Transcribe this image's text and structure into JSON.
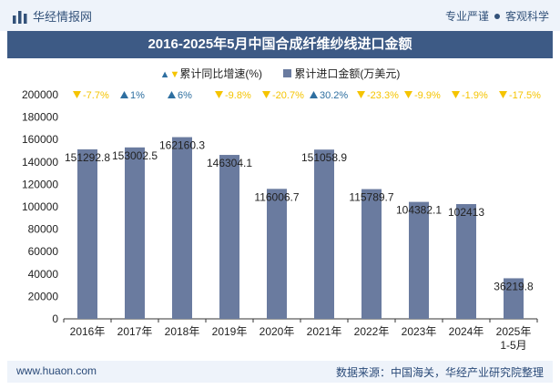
{
  "header": {
    "brand": "华经情报网",
    "slogan_left": "专业严谨",
    "slogan_right": "客观科学"
  },
  "title": "2016-2025年5月中国合成纤维纱线进口金额",
  "legend": {
    "growth_label": "累计同比增速(%)",
    "amount_label": "累计进口金额(万美元)"
  },
  "footer": {
    "website": "www.huaon.com",
    "source": "数据来源：中国海关，华经产业研究院整理"
  },
  "colors": {
    "bar": "#6a7b9f",
    "up": "#2e6fa0",
    "down": "#f5c400",
    "header_bg": "#3d5a85"
  },
  "chart_data": {
    "type": "bar",
    "categories": [
      "2016年",
      "2017年",
      "2018年",
      "2019年",
      "2020年",
      "2021年",
      "2022年",
      "2023年",
      "2024年",
      "2025年\n1-5月"
    ],
    "series": [
      {
        "name": "累计进口金额(万美元)",
        "values": [
          151292.8,
          153002.5,
          162160.3,
          146304.1,
          116006.7,
          151058.9,
          115789.7,
          104382.1,
          102413,
          36219.8
        ]
      },
      {
        "name": "累计同比增速(%)",
        "values": [
          -7.7,
          1,
          6,
          -9.8,
          -20.7,
          30.2,
          -23.3,
          -9.9,
          -1.9,
          -17.5
        ]
      }
    ],
    "value_labels": [
      "151292.8",
      "153002.5",
      "162160.3",
      "146304.1",
      "116006.7",
      "151058.9",
      "115789.7",
      "104382.1",
      "102413",
      "36219.8"
    ],
    "growth_labels": [
      "-7.7%",
      "1%",
      "6%",
      "-9.8%",
      "-20.7%",
      "30.2%",
      "-23.3%",
      "-9.9%",
      "-1.9%",
      "-17.5%"
    ],
    "ylim": [
      0,
      200000
    ],
    "yticks": [
      "0",
      "20000",
      "40000",
      "60000",
      "80000",
      "100000",
      "120000",
      "140000",
      "160000",
      "180000",
      "200000"
    ]
  }
}
